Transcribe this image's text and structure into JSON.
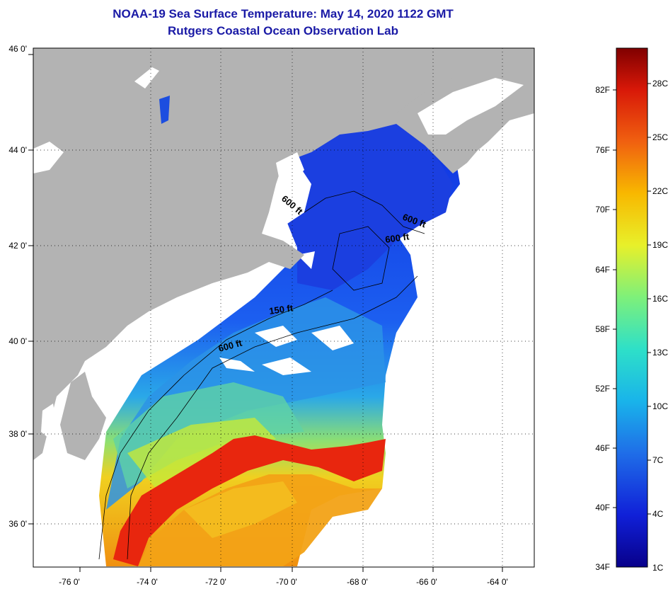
{
  "title": {
    "line1": "NOAA-19 Sea Surface Temperature:  May 14, 2020 1122 GMT",
    "line2": "Rutgers Coastal Ocean Observation Lab"
  },
  "map": {
    "lat_labels": [
      "46 0'",
      "44 0'",
      "42 0'",
      "40 0'",
      "38 0'",
      "36 0'"
    ],
    "lon_labels": [
      "-76 0'",
      "-74 0'",
      "-72 0'",
      "-70 0'",
      "-68 0'",
      "-66 0'",
      "-64 0'"
    ],
    "contour_labels": [
      "600 ft",
      "600 ft",
      "600 ft",
      "150 ft",
      "600 ft"
    ],
    "colors": {
      "land": "#b3b3b3",
      "cloud": "#ffffff",
      "cold": "#1f3fe0",
      "warm": "#e62a10"
    }
  },
  "colorbar": {
    "fahrenheit_labels": [
      "82F",
      "76F",
      "70F",
      "64F",
      "58F",
      "52F",
      "46F",
      "40F",
      "34F"
    ],
    "celsius_labels": [
      "28C",
      "25C",
      "22C",
      "19C",
      "16C",
      "13C",
      "10C",
      "7C",
      "4C",
      "1C"
    ],
    "stops": [
      "#08008a",
      "#1020d8",
      "#1f6ee8",
      "#19b4ea",
      "#2ee0c8",
      "#7ef07a",
      "#e8f02a",
      "#f8b800",
      "#f06010",
      "#d81808",
      "#800000"
    ]
  }
}
